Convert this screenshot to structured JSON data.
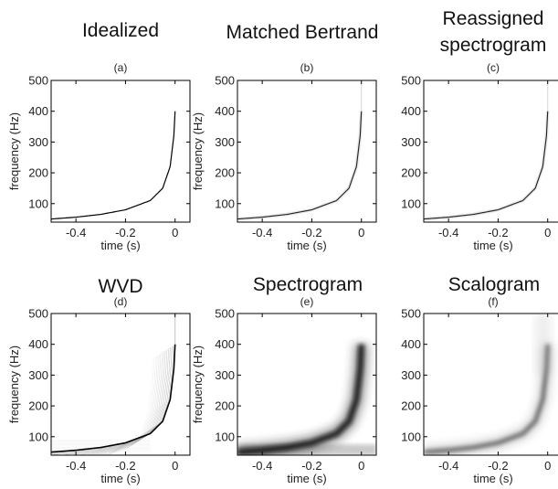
{
  "figure": {
    "colors": {
      "ink": "#000000",
      "background": "#ffffff"
    }
  },
  "chart_data": [
    {
      "type": "heatmap",
      "title": "Idealized",
      "subtitle": "(a)",
      "xlabel": "time (s)",
      "ylabel": "frequency (Hz)",
      "xlim": [
        -0.5,
        0.06
      ],
      "ylim": [
        40,
        500
      ],
      "xticks": [
        "-0.4",
        "-0.2",
        "0"
      ],
      "yticks": [
        "100",
        "200",
        "300",
        "400",
        "500"
      ],
      "ytick_values": [
        100,
        200,
        300,
        400,
        500
      ],
      "xtick_values": [
        -0.4,
        -0.2,
        0
      ],
      "grid": false,
      "ridge": {
        "x": [
          -0.5,
          -0.4,
          -0.3,
          -0.2,
          -0.1,
          -0.05,
          -0.02,
          -0.005,
          0.0
        ],
        "y": [
          50,
          56,
          65,
          80,
          110,
          150,
          220,
          320,
          400
        ]
      },
      "spread": "line"
    },
    {
      "type": "heatmap",
      "title": "Matched Bertrand",
      "subtitle": "(b)",
      "xlabel": "time (s)",
      "ylabel": "frequency (Hz)",
      "xlim": [
        -0.5,
        0.06
      ],
      "ylim": [
        40,
        500
      ],
      "xticks": [
        "-0.4",
        "-0.2",
        "0"
      ],
      "yticks": [
        "100",
        "200",
        "300",
        "400",
        "500"
      ],
      "ytick_values": [
        100,
        200,
        300,
        400,
        500
      ],
      "xtick_values": [
        -0.4,
        -0.2,
        0
      ],
      "grid": false,
      "ridge": {
        "x": [
          -0.5,
          -0.4,
          -0.3,
          -0.2,
          -0.1,
          -0.05,
          -0.02,
          -0.005,
          0.0
        ],
        "y": [
          50,
          56,
          65,
          80,
          110,
          150,
          220,
          320,
          400
        ]
      },
      "spread": "thin"
    },
    {
      "type": "heatmap",
      "title": "Reassigned spectrogram",
      "title_lines": [
        "Reassigned",
        "spectrogram"
      ],
      "subtitle": "(c)",
      "xlabel": "time (s)",
      "ylabel": "",
      "xlim": [
        -0.5,
        0.06
      ],
      "ylim": [
        40,
        500
      ],
      "xticks": [
        "-0.4",
        "-0.2",
        "0"
      ],
      "yticks": [
        "100",
        "200",
        "300",
        "400",
        "500"
      ],
      "ytick_values": [
        100,
        200,
        300,
        400,
        500
      ],
      "xtick_values": [
        -0.4,
        -0.2,
        0
      ],
      "grid": false,
      "ridge": {
        "x": [
          -0.5,
          -0.4,
          -0.3,
          -0.2,
          -0.1,
          -0.05,
          -0.02,
          -0.005,
          0.0
        ],
        "y": [
          50,
          56,
          65,
          80,
          110,
          150,
          220,
          320,
          400
        ]
      },
      "spread": "thin"
    },
    {
      "type": "heatmap",
      "title": "WVD",
      "subtitle": "(d)",
      "xlabel": "time (s)",
      "ylabel": "frequency (Hz)",
      "xlim": [
        -0.5,
        0.06
      ],
      "ylim": [
        40,
        500
      ],
      "xticks": [
        "-0.4",
        "-0.2",
        "0"
      ],
      "yticks": [
        "100",
        "200",
        "300",
        "400",
        "500"
      ],
      "ytick_values": [
        100,
        200,
        300,
        400,
        500
      ],
      "xtick_values": [
        -0.4,
        -0.2,
        0
      ],
      "grid": false,
      "ridge": {
        "x": [
          -0.5,
          -0.4,
          -0.3,
          -0.2,
          -0.1,
          -0.05,
          -0.02,
          -0.005,
          0.0
        ],
        "y": [
          50,
          56,
          65,
          80,
          110,
          150,
          220,
          320,
          400
        ]
      },
      "spread": "interference"
    },
    {
      "type": "heatmap",
      "title": "Spectrogram",
      "subtitle": "(e)",
      "xlabel": "time (s)",
      "ylabel": "frequency (Hz)",
      "xlim": [
        -0.5,
        0.06
      ],
      "ylim": [
        40,
        500
      ],
      "xticks": [
        "-0.4",
        "-0.2",
        "0"
      ],
      "yticks": [
        "100",
        "200",
        "300",
        "400",
        "500"
      ],
      "ytick_values": [
        100,
        200,
        300,
        400,
        500
      ],
      "xtick_values": [
        -0.4,
        -0.2,
        0
      ],
      "grid": false,
      "ridge": {
        "x": [
          -0.5,
          -0.4,
          -0.3,
          -0.2,
          -0.1,
          -0.05,
          -0.02,
          -0.005,
          0.0
        ],
        "y": [
          50,
          56,
          65,
          80,
          110,
          150,
          220,
          320,
          400
        ]
      },
      "spread": "wide"
    },
    {
      "type": "heatmap",
      "title": "Scalogram",
      "subtitle": "(f)",
      "xlabel": "time (s)",
      "ylabel": "",
      "xlim": [
        -0.5,
        0.06
      ],
      "ylim": [
        40,
        500
      ],
      "xticks": [
        "-0.4",
        "-0.2",
        "0"
      ],
      "yticks": [
        "100",
        "200",
        "300",
        "400",
        "500"
      ],
      "ytick_values": [
        100,
        200,
        300,
        400,
        500
      ],
      "xtick_values": [
        -0.4,
        -0.2,
        0
      ],
      "grid": false,
      "ridge": {
        "x": [
          -0.5,
          -0.4,
          -0.3,
          -0.2,
          -0.1,
          -0.05,
          -0.02,
          -0.005,
          0.0
        ],
        "y": [
          50,
          56,
          65,
          80,
          110,
          150,
          220,
          320,
          400
        ]
      },
      "spread": "scale"
    }
  ]
}
